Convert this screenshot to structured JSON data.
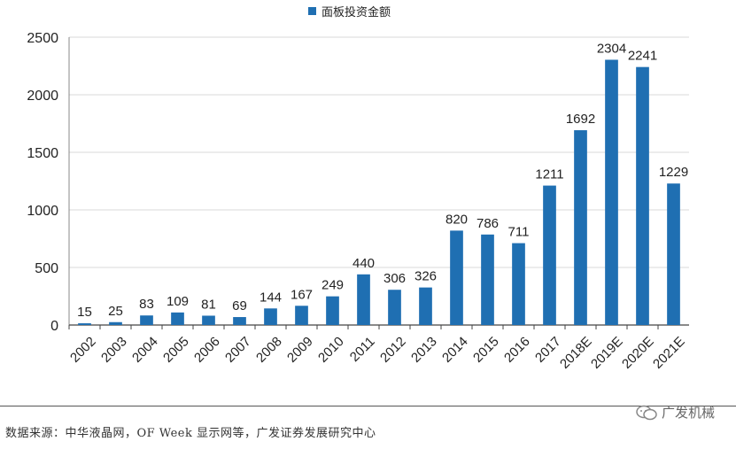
{
  "legend": {
    "label": "面板投资金额",
    "color": "#1f6fb2"
  },
  "source_note": "数据来源：中华液晶网，OF Week 显示网等，广发证券发展研究中心",
  "watermark": "广发机械",
  "chart_data": {
    "type": "bar",
    "categories": [
      "2002",
      "2003",
      "2004",
      "2005",
      "2006",
      "2007",
      "2008",
      "2009",
      "2010",
      "2011",
      "2012",
      "2013",
      "2014",
      "2015",
      "2016",
      "2017",
      "2018E",
      "2019E",
      "2020E",
      "2021E"
    ],
    "series": [
      {
        "name": "面板投资金额",
        "values": [
          15,
          25,
          83,
          109,
          81,
          69,
          144,
          167,
          249,
          440,
          306,
          326,
          820,
          786,
          711,
          1211,
          1692,
          2304,
          2241,
          1229
        ]
      }
    ],
    "y_ticks": [
      0,
      500,
      1000,
      1500,
      2000,
      2500
    ],
    "ylim": [
      0,
      2500
    ],
    "grid": true,
    "legend_position": "top-center",
    "bar_color": "#1f6fb2"
  }
}
